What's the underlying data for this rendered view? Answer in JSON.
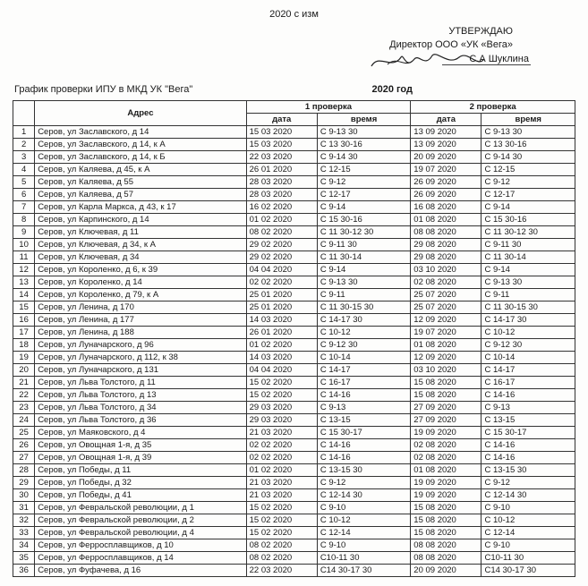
{
  "header": {
    "top_line": "2020 с изм",
    "approve_line1": "УТВЕРЖДАЮ",
    "approve_line2": "Директор ООО «УК «Вега»",
    "approve_name": "С.А Шуклина"
  },
  "title": {
    "left": "График проверки ИПУ в МКД  УК \"Вега\"",
    "year": "2020 год"
  },
  "columns": {
    "address": "Адрес",
    "check1": "1 проверка",
    "check2": "2 проверка",
    "date": "дата",
    "time": "время"
  },
  "rows": [
    {
      "n": "1",
      "addr": "Серов, ул Заславского, д 14",
      "d1": "15 03 2020",
      "t1": "С 9-13 30",
      "d2": "13 09 2020",
      "t2": "С 9-13 30"
    },
    {
      "n": "2",
      "addr": "Серов, ул Заславского, д 14, к А",
      "d1": "15 03 2020",
      "t1": "С 13 30-16",
      "d2": "13 09 2020",
      "t2": "С 13 30-16"
    },
    {
      "n": "3",
      "addr": "Серов, ул Заславского, д 14, к Б",
      "d1": "22 03 2020",
      "t1": "С 9-14 30",
      "d2": "20 09 2020",
      "t2": "С 9-14 30"
    },
    {
      "n": "4",
      "addr": "Серов, ул Каляева, д 45, к А",
      "d1": "26 01 2020",
      "t1": "С 12-15",
      "d2": "19 07 2020",
      "t2": "С 12-15"
    },
    {
      "n": "5",
      "addr": "Серов, ул Каляева, д 55",
      "d1": "28 03 2020",
      "t1": "С 9-12",
      "d2": "26 09 2020",
      "t2": "С 9-12"
    },
    {
      "n": "6",
      "addr": "Серов, ул Каляева, д 57",
      "d1": "28 03 2020",
      "t1": "С 12-17",
      "d2": "26 09 2020",
      "t2": "С 12-17"
    },
    {
      "n": "7",
      "addr": "Серов, ул Карла Маркса, д 43, к 17",
      "d1": "16 02 2020",
      "t1": "С 9-14",
      "d2": "16 08 2020",
      "t2": "С 9-14"
    },
    {
      "n": "8",
      "addr": "Серов, ул Карпинского, д 14",
      "d1": "01 02 2020",
      "t1": "С 15 30-16",
      "d2": "01 08 2020",
      "t2": "С 15 30-16"
    },
    {
      "n": "9",
      "addr": "Серов, ул Ключевая, д 11",
      "d1": "08 02 2020",
      "t1": "С 11 30-12 30",
      "d2": "08 08 2020",
      "t2": "С 11 30-12 30"
    },
    {
      "n": "10",
      "addr": "Серов, ул Ключевая, д 34, к А",
      "d1": "29 02 2020",
      "t1": "С 9-11 30",
      "d2": "29 08 2020",
      "t2": "С 9-11 30"
    },
    {
      "n": "11",
      "addr": "Серов, ул Ключевая, д 34",
      "d1": "29 02 2020",
      "t1": "С 11 30-14",
      "d2": "29 08 2020",
      "t2": "С 11 30-14"
    },
    {
      "n": "12",
      "addr": "Серов, ул Короленко, д 6, к 39",
      "d1": "04 04 2020",
      "t1": "С 9-14",
      "d2": "03 10 2020",
      "t2": "С 9-14"
    },
    {
      "n": "13",
      "addr": "Серов, ул Короленко, д 14",
      "d1": "02 02 2020",
      "t1": "С 9-13 30",
      "d2": "02 08 2020",
      "t2": "С 9-13 30"
    },
    {
      "n": "14",
      "addr": "Серов, ул Короленко, д 79, к А",
      "d1": "25 01 2020",
      "t1": "С 9-11",
      "d2": "25 07 2020",
      "t2": "С 9-11"
    },
    {
      "n": "15",
      "addr": "Серов, ул Ленина, д 170",
      "d1": "25 01 2020",
      "t1": "С 11 30-15 30",
      "d2": "25 07 2020",
      "t2": "С 11 30-15 30"
    },
    {
      "n": "16",
      "addr": "Серов, ул Ленина, д 177",
      "d1": "14 03 2020",
      "t1": "С 14-17 30",
      "d2": "12 09 2020",
      "t2": "С 14-17 30"
    },
    {
      "n": "17",
      "addr": "Серов, ул Ленина, д 188",
      "d1": "26 01 2020",
      "t1": "С 10-12",
      "d2": "19 07 2020",
      "t2": "С 10-12"
    },
    {
      "n": "18",
      "addr": "Серов, ул Луначарского, д 96",
      "d1": "01 02 2020",
      "t1": "С 9-12 30",
      "d2": "01 08 2020",
      "t2": "С 9-12 30"
    },
    {
      "n": "19",
      "addr": "Серов, ул Луначарского, д 112, к 38",
      "d1": "14 03 2020",
      "t1": "С 10-14",
      "d2": "12 09 2020",
      "t2": "С 10-14"
    },
    {
      "n": "20",
      "addr": "Серов, ул Луначарского, д 131",
      "d1": "04 04 2020",
      "t1": "С 14-17",
      "d2": "03 10 2020",
      "t2": "С 14-17"
    },
    {
      "n": "21",
      "addr": "Серов, ул Льва Толстого, д 11",
      "d1": "15 02 2020",
      "t1": "С 16-17",
      "d2": "15 08 2020",
      "t2": "С 16-17"
    },
    {
      "n": "22",
      "addr": "Серов, ул Льва Толстого, д 13",
      "d1": "15 02 2020",
      "t1": "С 14-16",
      "d2": "15 08 2020",
      "t2": "С 14-16"
    },
    {
      "n": "23",
      "addr": "Серов, ул Льва Толстого, д 34",
      "d1": "29 03 2020",
      "t1": "С 9-13",
      "d2": "27 09 2020",
      "t2": "С 9-13"
    },
    {
      "n": "24",
      "addr": "Серов, ул Льва Толстого, д 36",
      "d1": "29 03 2020",
      "t1": "С 13-15",
      "d2": "27 09 2020",
      "t2": "С 13-15"
    },
    {
      "n": "25",
      "addr": "Серов, ул Маяковского, д 4",
      "d1": "21 03 2020",
      "t1": "С 15 30-17",
      "d2": "19 09 2020",
      "t2": "С 15 30-17"
    },
    {
      "n": "26",
      "addr": "Серов, ул Овощная 1-я, д 35",
      "d1": "02 02 2020",
      "t1": "С 14-16",
      "d2": "02 08 2020",
      "t2": "С 14-16"
    },
    {
      "n": "27",
      "addr": "Серов, ул Овощная 1-я, д 39",
      "d1": "02 02 2020",
      "t1": "С 14-16",
      "d2": "02 08 2020",
      "t2": "С 14-16"
    },
    {
      "n": "28",
      "addr": "Серов, ул Победы, д 11",
      "d1": "01 02 2020",
      "t1": "С 13-15 30",
      "d2": "01 08 2020",
      "t2": "С 13-15 30"
    },
    {
      "n": "29",
      "addr": "Серов, ул Победы, д 32",
      "d1": "21 03 2020",
      "t1": "С 9-12",
      "d2": "19 09 2020",
      "t2": "С 9-12"
    },
    {
      "n": "30",
      "addr": "Серов, ул Победы, д 41",
      "d1": "21 03 2020",
      "t1": "С 12-14 30",
      "d2": "19 09 2020",
      "t2": "С 12-14 30"
    },
    {
      "n": "31",
      "addr": "Серов, ул Февральской революции, д 1",
      "d1": "15 02 2020",
      "t1": "С 9-10",
      "d2": "15 08 2020",
      "t2": "С 9-10"
    },
    {
      "n": "32",
      "addr": "Серов, ул Февральской революции, д 2",
      "d1": "15 02 2020",
      "t1": "С 10-12",
      "d2": "15 08 2020",
      "t2": "С 10-12"
    },
    {
      "n": "33",
      "addr": "Серов, ул Февральской революции, д 4",
      "d1": "15 02 2020",
      "t1": "С 12-14",
      "d2": "15 08 2020",
      "t2": "С 12-14"
    },
    {
      "n": "34",
      "addr": "Серов, ул Ферросплавщиков, д 10",
      "d1": "08 02 2020",
      "t1": "С 9-10",
      "d2": "08 08 2020",
      "t2": "С 9-10"
    },
    {
      "n": "35",
      "addr": "Серов, ул Ферросплавщиков, д 14",
      "d1": "08 02 2020",
      "t1": "С10-11 30",
      "d2": "08 08 2020",
      "t2": "С10-11 30"
    },
    {
      "n": "36",
      "addr": "Серов, ул Фуфачева, д 16",
      "d1": "22 03 2020",
      "t1": "С14 30-17 30",
      "d2": "20 09 2020",
      "t2": "С14 30-17 30"
    }
  ]
}
